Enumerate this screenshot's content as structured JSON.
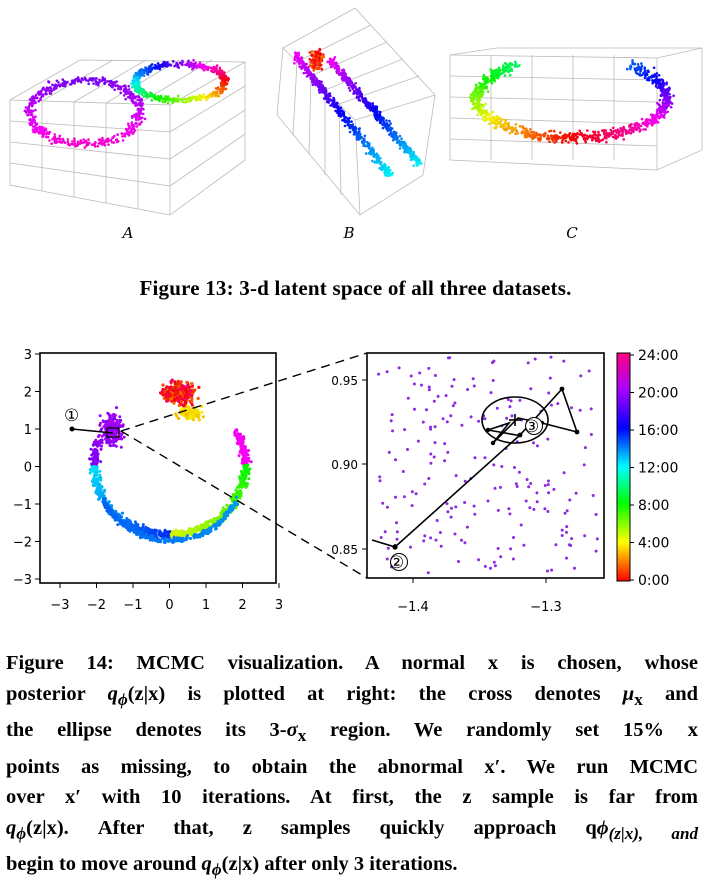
{
  "figure13": {
    "panel_labels": [
      "A",
      "B",
      "C"
    ],
    "caption": "Figure 13: 3-d latent space of all three datasets."
  },
  "figure14": {
    "left_plot": {
      "x_ticks": [
        "−3",
        "−2",
        "−1",
        "0",
        "1",
        "2",
        "3"
      ],
      "y_ticks": [
        "3",
        "2",
        "1",
        "0",
        "−1",
        "−2",
        "−3"
      ],
      "marker_label": "①"
    },
    "right_plot": {
      "x_ticks": [
        "−1.4",
        "−1.3"
      ],
      "y_ticks": [
        "0.95",
        "0.90",
        "0.85"
      ],
      "marker_labels": [
        "②",
        "③"
      ]
    },
    "colorbar": {
      "ticks": [
        "24:00",
        "20:00",
        "16:00",
        "12:00",
        "8:00",
        "4:00",
        "0:00"
      ],
      "colors": [
        "#ff0000",
        "#ffff00",
        "#00ff00",
        "#00ffff",
        "#0000ff",
        "#ff00ff",
        "#ff0080"
      ]
    },
    "caption_lines": [
      [
        "Figure 14: MCMC visualization. A normal x is chosen, whose"
      ],
      [
        "posterior ",
        "q",
        "ϕ",
        "(z|x) is plotted at right: the cross denotes ",
        "μ",
        "x"
      ],
      [
        "the ellipse denotes its 3-",
        "σ",
        "x",
        " region. We randomly set 15% x"
      ],
      [
        "points as missing, to obtain the abnormal x′. We run MCMC"
      ],
      [
        "over x′ with 10 iterations. At first, the z sample is far from"
      ],
      [
        "q",
        "ϕ",
        "(z|x). After that, z samples quickly approach ",
        "q",
        "ϕ",
        "(z|x), and"
      ],
      [
        "begin to move around ",
        "q",
        "ϕ",
        "(z|x) after only 3 iterations."
      ]
    ],
    "caption_extra": [
      "and"
    ]
  }
}
